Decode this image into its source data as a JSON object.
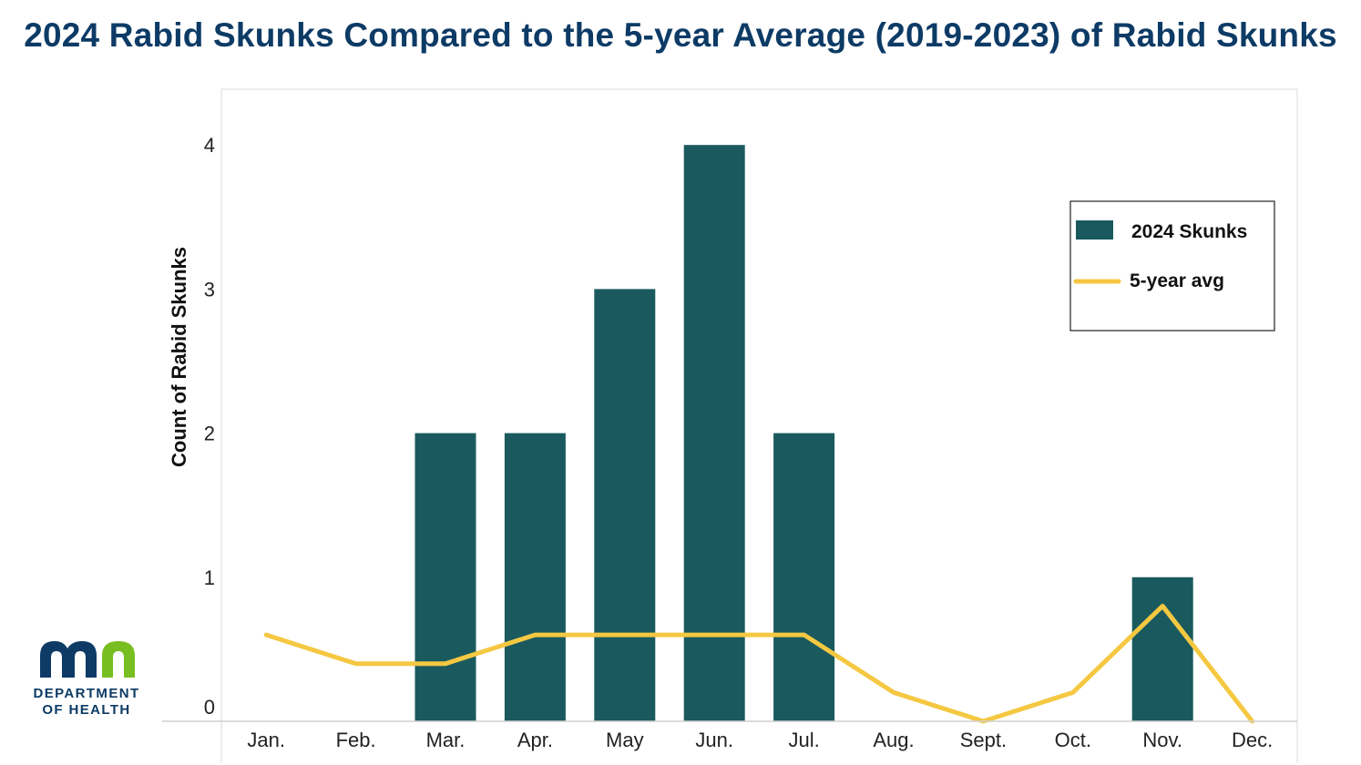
{
  "chart_data": {
    "type": "bar",
    "title": "2024 Rabid Skunks Compared to the 5-year Average (2019-2023) of Rabid Skunks",
    "xlabel": "",
    "ylabel": "Count of Rabid Skunks",
    "ylim": [
      0,
      4.4
    ],
    "yticks": [
      "0",
      "1",
      "2",
      "3",
      "4"
    ],
    "categories": [
      "Jan.",
      "Feb.",
      "Mar.",
      "Apr.",
      "May",
      "Jun.",
      "Jul.",
      "Aug.",
      "Sept.",
      "Oct.",
      "Nov.",
      "Dec."
    ],
    "series": [
      {
        "name": "2024 Skunks",
        "kind": "bar",
        "color": "#1a5a5e",
        "values": [
          0,
          0,
          2,
          2,
          3,
          4,
          2,
          0,
          0,
          0,
          1,
          0
        ]
      },
      {
        "name": "5-year avg",
        "kind": "line",
        "color": "#f5c842",
        "values": [
          0.6,
          0.4,
          0.4,
          0.6,
          0.6,
          0.6,
          0.6,
          0.2,
          0,
          0.2,
          0.8,
          0
        ]
      }
    ],
    "legend": "top-right",
    "grid": false
  },
  "logo": {
    "mark": "mn",
    "line1": "DEPARTMENT",
    "line2": "OF HEALTH",
    "color_dark": "#0d3b66",
    "color_green": "#78be20"
  }
}
